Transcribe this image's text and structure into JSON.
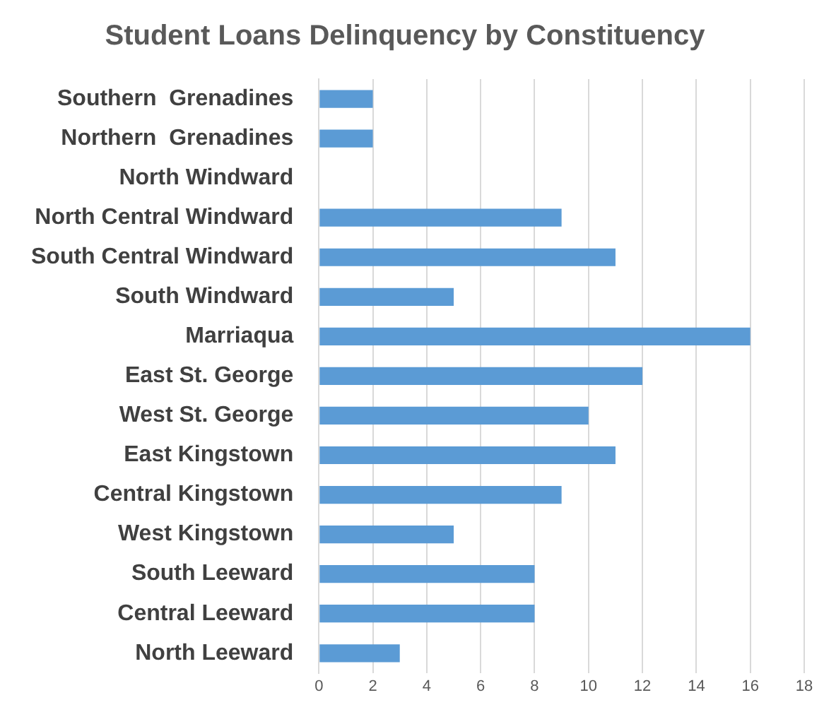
{
  "chart_data": {
    "type": "bar",
    "orientation": "horizontal",
    "title": "Student Loans Delinquency by Constituency",
    "categories": [
      "Southern  Grenadines",
      "Northern  Grenadines",
      "North Windward",
      "North Central Windward",
      "South Central Windward",
      "South Windward",
      "Marriaqua",
      "East St. George",
      "West St. George",
      "East Kingstown",
      "Central Kingstown",
      "West Kingstown",
      "South Leeward",
      "Central Leeward",
      "North Leeward"
    ],
    "values": [
      2,
      2,
      0,
      9,
      11,
      5,
      16,
      12,
      10,
      11,
      9,
      5,
      8,
      8,
      3
    ],
    "color": "#5b9bd5",
    "xlim": [
      0,
      18
    ],
    "xticks": [
      0,
      2,
      4,
      6,
      8,
      10,
      12,
      14,
      16,
      18
    ],
    "grid": "x",
    "legend": false
  }
}
